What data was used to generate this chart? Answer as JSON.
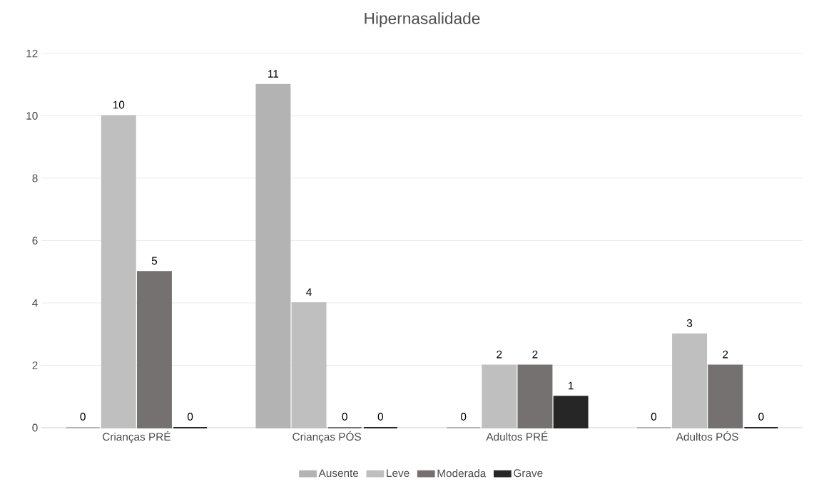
{
  "chart_data": {
    "type": "bar",
    "title": "Hipernasalidade",
    "categories": [
      "Crianças PRÉ",
      "Crianças PÓS",
      "Adultos PRÉ",
      "Adultos PÓS"
    ],
    "series": [
      {
        "name": "Ausente",
        "color": "#b3b3b3",
        "values": [
          0,
          11,
          0,
          0
        ]
      },
      {
        "name": "Leve",
        "color": "#bfbfbf",
        "values": [
          10,
          4,
          2,
          3
        ]
      },
      {
        "name": "Moderada",
        "color": "#767171",
        "values": [
          5,
          0,
          2,
          2
        ]
      },
      {
        "name": "Grave",
        "color": "#262626",
        "values": [
          0,
          0,
          1,
          0
        ]
      }
    ],
    "ylim": [
      0,
      12
    ],
    "yticks": [
      0,
      2,
      4,
      6,
      8,
      10,
      12
    ],
    "grid": "y",
    "legend": "bottom",
    "data_labels": true
  }
}
